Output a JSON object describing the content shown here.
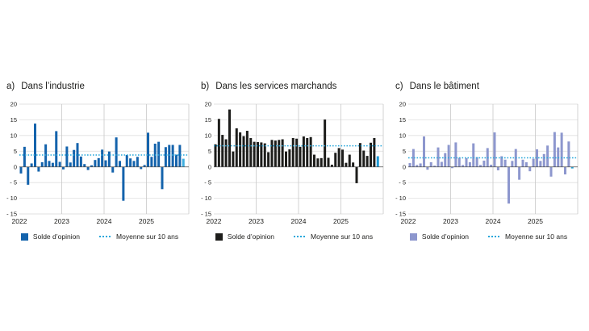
{
  "figure": {
    "background": "#ffffff",
    "axis": {
      "y_ticks": [
        20,
        15,
        10,
        5,
        0,
        -5,
        -10,
        -15
      ],
      "ylim": [
        -15,
        20
      ],
      "x_year_labels": [
        "2022",
        "2023",
        "2024",
        "2025"
      ],
      "gridline_color": "#d9d9d9",
      "year_gridline_color": "#c8c8c8",
      "zero_line_color": "#4d4d4d",
      "text_color": "#1d1d1b"
    }
  },
  "chart_data": [
    {
      "type": "bar",
      "frequency": "monthly",
      "title_prefix": "a)",
      "title": "Dans l’industrie",
      "period_start": "2022-01",
      "period_end": "2025-11",
      "years": [
        "2022",
        "2023",
        "2024",
        "2025"
      ],
      "values": [
        -2.1,
        6.4,
        -5.7,
        1.1,
        13.8,
        -1.5,
        1.5,
        7.2,
        1.9,
        1.3,
        11.4,
        1.6,
        -0.8,
        6.5,
        1.4,
        5.4,
        7.6,
        3.3,
        0.9,
        -1.0,
        0.5,
        2.2,
        2.8,
        5.5,
        2.1,
        4.9,
        -1.8,
        9.4,
        1.9,
        -10.8,
        3.8,
        2.7,
        1.9,
        3.2,
        -0.7,
        0.6,
        10.9,
        3.2,
        7.4,
        8.0,
        -7.1,
        6.3,
        7.0,
        7.0,
        3.9,
        7.0,
        2.6
      ],
      "mean_10y": 3.8,
      "ylim": [
        -15,
        20
      ],
      "bar_color": "#1463ac",
      "highlight_last_color": "#3fadde",
      "mean_color": "#27a7db",
      "legend": {
        "bars": "Solde d’opinion",
        "mean": "Moyenne sur 10 ans"
      }
    },
    {
      "type": "bar",
      "frequency": "monthly",
      "title_prefix": "b)",
      "title": "Dans les services marchands",
      "period_start": "2022-01",
      "period_end": "2025-11",
      "years": [
        "2022",
        "2023",
        "2024",
        "2025"
      ],
      "values": [
        7.2,
        15.3,
        10.2,
        8.8,
        18.3,
        4.9,
        12.3,
        11.0,
        9.8,
        11.5,
        9.2,
        8.0,
        7.9,
        7.8,
        7.5,
        4.7,
        8.6,
        8.4,
        8.6,
        8.8,
        4.9,
        5.6,
        9.2,
        9.0,
        6.4,
        9.7,
        9.2,
        9.5,
        3.9,
        2.7,
        2.8,
        15.1,
        2.9,
        0.7,
        4.5,
        6.0,
        5.5,
        1.3,
        3.9,
        1.4,
        -5.2,
        7.6,
        5.2,
        3.5,
        7.7,
        9.2,
        3.4
      ],
      "mean_10y": 6.7,
      "ylim": [
        -15,
        20
      ],
      "bar_color": "#1d1d1b",
      "highlight_last_color": "#1e9ad5",
      "mean_color": "#27a7db",
      "legend": {
        "bars": "Solde d’opinion",
        "mean": "Moyenne sur 10 ans"
      }
    },
    {
      "type": "bar",
      "frequency": "monthly",
      "title_prefix": "c)",
      "title": "Dans le bâtiment",
      "period_start": "2022-01",
      "period_end": "2025-11",
      "years": [
        "2022",
        "2023",
        "2024",
        "2025"
      ],
      "values": [
        1.2,
        5.7,
        0.6,
        1.1,
        9.7,
        -0.9,
        1.5,
        0.4,
        6.2,
        1.6,
        4.4,
        7.0,
        -0.4,
        7.8,
        2.9,
        0.6,
        2.8,
        1.5,
        7.5,
        3.1,
        0.6,
        2.0,
        6.0,
        0.7,
        11.0,
        -1.1,
        3.4,
        2.3,
        -11.7,
        1.9,
        5.7,
        -4.1,
        2.3,
        1.5,
        -1.4,
        2.6,
        5.6,
        1.9,
        4.1,
        6.8,
        -3.1,
        11.1,
        6.2,
        10.9,
        -2.4,
        8.1,
        -0.5
      ],
      "mean_10y": 2.9,
      "ylim": [
        -15,
        20
      ],
      "bar_color": "#8d97ce",
      "highlight_last_color": "#25a3d4",
      "mean_color": "#27a7db",
      "legend": {
        "bars": "Solde d’opinion",
        "mean": "Moyenne sur 10 ans"
      }
    }
  ]
}
